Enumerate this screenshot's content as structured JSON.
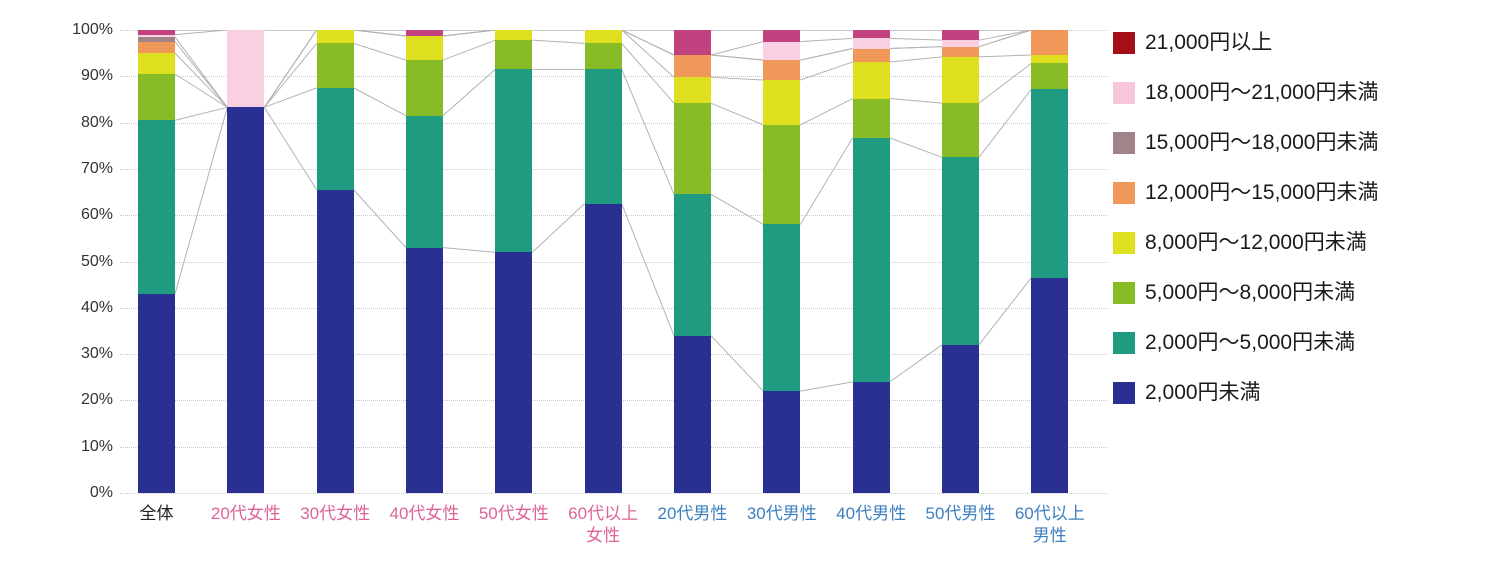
{
  "chart_data": {
    "type": "bar",
    "stacked": true,
    "percent": true,
    "title": "",
    "xlabel": "",
    "ylabel": "",
    "ylim": [
      0,
      100
    ],
    "yticks": [
      0,
      10,
      20,
      30,
      40,
      50,
      60,
      70,
      80,
      90,
      100
    ],
    "ytick_suffix": "%",
    "grid": "horizontal-dotted",
    "legend_position": "right",
    "connectors": true,
    "categories": [
      {
        "label": "全体",
        "color": "#222222"
      },
      {
        "label": "20代女性",
        "color": "#dd6397"
      },
      {
        "label": "30代女性",
        "color": "#dd6397"
      },
      {
        "label": "40代女性",
        "color": "#dd6397"
      },
      {
        "label": "50代女性",
        "color": "#dd6397"
      },
      {
        "label": "60代以上\n女性",
        "color": "#dd6397"
      },
      {
        "label": "20代男性",
        "color": "#3c80c0"
      },
      {
        "label": "30代男性",
        "color": "#3c80c0"
      },
      {
        "label": "40代男性",
        "color": "#3c80c0"
      },
      {
        "label": "50代男性",
        "color": "#3c80c0"
      },
      {
        "label": "60代以上\n男性",
        "color": "#3c80c0"
      }
    ],
    "series": [
      {
        "name": "2,000円未満",
        "color": "#293091",
        "values": [
          43.0,
          83.3,
          65.5,
          53.0,
          52.0,
          62.5,
          34.0,
          22.0,
          24.0,
          32.0,
          46.5
        ]
      },
      {
        "name": "2,000円～5,000円未満",
        "color": "#1f9b82",
        "values": [
          37.5,
          0,
          22.0,
          28.5,
          39.5,
          29.0,
          30.5,
          36.0,
          52.7,
          40.5,
          40.7
        ]
      },
      {
        "name": "5,000円～8,000円未満",
        "color": "#87bc27",
        "values": [
          10.0,
          0,
          9.6,
          12.0,
          6.3,
          5.6,
          19.7,
          21.5,
          8.5,
          11.7,
          5.6
        ]
      },
      {
        "name": "8,000円～12,000円未満",
        "color": "#dee01f",
        "values": [
          4.5,
          0,
          2.9,
          5.2,
          2.2,
          2.9,
          5.6,
          9.7,
          7.9,
          10.0,
          1.8
        ]
      },
      {
        "name": "12,000円～15,000円未満",
        "color": "#f0985a",
        "values": [
          2.5,
          0,
          0,
          0,
          0,
          0,
          4.8,
          4.3,
          2.9,
          2.2,
          5.4
        ]
      },
      {
        "name": "15,000円～18,000円未満",
        "color": "#a0848a",
        "values": [
          1.0,
          0,
          0,
          0,
          0,
          0,
          0,
          0,
          0,
          0,
          0
        ]
      },
      {
        "name": "18,000円～21,000円未満",
        "color": "#f9d0e2",
        "values": [
          0.5,
          16.7,
          0,
          0,
          0,
          0,
          0,
          4.0,
          2.2,
          1.4,
          0
        ]
      },
      {
        "name": "21,000円以上",
        "color": "#c2417f",
        "values": [
          1.0,
          0,
          0,
          1.3,
          0,
          0,
          5.4,
          2.5,
          1.8,
          2.2,
          0
        ]
      }
    ]
  },
  "legend": {
    "items": [
      {
        "label": "21,000円以上",
        "color": "#a40f17"
      },
      {
        "label": "18,000円～21,000円未満",
        "color": "#f9c6db"
      },
      {
        "label": "15,000円～18,000円未満",
        "color": "#a0848a"
      },
      {
        "label": "12,000円～15,000円未満",
        "color": "#f0985a"
      },
      {
        "label": "8,000円～12,000円未満",
        "color": "#dee01f"
      },
      {
        "label": "5,000円～8,000円未満",
        "color": "#87bc27"
      },
      {
        "label": "2,000円～5,000円未満",
        "color": "#1f9b82"
      },
      {
        "label": "2,000円未満",
        "color": "#293091"
      }
    ]
  },
  "style": {
    "background": "#ffffff",
    "grid_color": "#c9c9c9",
    "connector_color": "#b3b3b3",
    "ytick_color": "#333333",
    "legend_text_color": "#1a1a1a"
  }
}
